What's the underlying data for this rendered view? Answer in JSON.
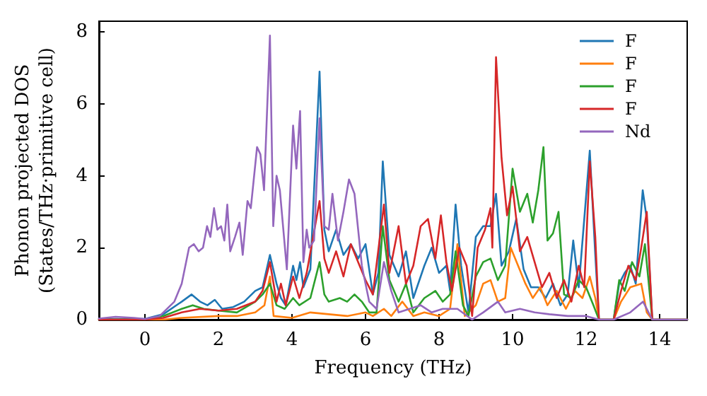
{
  "chart_data": {
    "type": "line",
    "xlabel": "Frequency (THz)",
    "ylabel": "Phonon projected DOS\n(States/THz·primitive cell)",
    "xlim": [
      -1.25,
      14.75
    ],
    "xticks": [
      0,
      2,
      4,
      6,
      8,
      10,
      12,
      14
    ],
    "ylim": [
      0,
      8.3
    ],
    "yticks": [
      0,
      2,
      4,
      6,
      8
    ],
    "grid": false,
    "legend": "top right",
    "marker": "none",
    "line_style": "solid",
    "series": [
      {
        "name": "F",
        "color": "#1f77b4",
        "x": [
          -1.25,
          0,
          0.5,
          1.0,
          1.27,
          1.5,
          1.7,
          1.9,
          2.1,
          2.4,
          2.7,
          3.0,
          3.2,
          3.4,
          3.58,
          3.7,
          3.83,
          4.03,
          4.12,
          4.22,
          4.31,
          4.5,
          4.75,
          4.88,
          5.0,
          5.2,
          5.4,
          5.6,
          5.8,
          6.0,
          6.2,
          6.35,
          6.47,
          6.65,
          6.9,
          7.1,
          7.3,
          7.6,
          7.8,
          8.0,
          8.2,
          8.3,
          8.45,
          8.6,
          8.8,
          9.0,
          9.2,
          9.4,
          9.55,
          9.7,
          9.9,
          10.1,
          10.3,
          10.5,
          10.7,
          10.9,
          11.1,
          11.3,
          11.5,
          11.65,
          11.8,
          12.1,
          12.25,
          12.35,
          12.75,
          12.9,
          13.05,
          13.2,
          13.35,
          13.54,
          13.65,
          13.8,
          14.75
        ],
        "values": [
          0.02,
          0.02,
          0.15,
          0.5,
          0.7,
          0.5,
          0.4,
          0.55,
          0.3,
          0.35,
          0.5,
          0.8,
          0.9,
          1.8,
          1.0,
          0.6,
          0.4,
          1.5,
          1.1,
          1.6,
          0.9,
          1.4,
          6.9,
          2.5,
          1.9,
          2.5,
          1.8,
          2.1,
          1.7,
          2.1,
          0.7,
          1.3,
          4.4,
          1.8,
          1.2,
          1.9,
          0.6,
          1.5,
          2.0,
          1.3,
          1.5,
          0.8,
          3.2,
          1.5,
          0.2,
          2.3,
          2.6,
          2.6,
          3.5,
          1.5,
          1.9,
          2.8,
          1.4,
          0.9,
          0.9,
          0.6,
          1.0,
          0.4,
          0.7,
          2.2,
          0.9,
          4.7,
          1.8,
          0,
          0,
          1.0,
          1.3,
          1.5,
          1.0,
          3.6,
          2.8,
          0,
          0
        ]
      },
      {
        "name": "F",
        "color": "#ff7f0e",
        "x": [
          -1.25,
          0.5,
          1.0,
          2.0,
          2.5,
          3.0,
          3.25,
          3.4,
          3.5,
          4.0,
          4.5,
          5.0,
          5.5,
          6.0,
          6.2,
          6.5,
          6.7,
          7.0,
          7.3,
          7.6,
          8.0,
          8.3,
          8.5,
          8.7,
          9.0,
          9.2,
          9.4,
          9.6,
          9.8,
          9.95,
          10.15,
          10.35,
          10.55,
          10.75,
          10.95,
          11.2,
          11.45,
          11.7,
          11.9,
          12.1,
          12.25,
          12.35,
          12.75,
          12.95,
          13.2,
          13.5,
          13.65,
          13.8,
          14.75
        ],
        "values": [
          0,
          0,
          0.05,
          0.1,
          0.1,
          0.2,
          0.4,
          1.2,
          0.1,
          0.05,
          0.2,
          0.15,
          0.1,
          0.2,
          0.1,
          0.3,
          0.1,
          0.5,
          0.1,
          0.2,
          0.1,
          0.3,
          2.1,
          0.1,
          0.4,
          1.0,
          1.1,
          0.5,
          0.6,
          2.0,
          1.5,
          1.0,
          0.6,
          0.9,
          0.4,
          0.8,
          0.3,
          0.8,
          0.6,
          1.2,
          0.6,
          0,
          0,
          0.5,
          0.9,
          1.0,
          0.2,
          0,
          0
        ]
      },
      {
        "name": "F",
        "color": "#2ca02c",
        "x": [
          -1.25,
          0,
          0.5,
          1.0,
          1.3,
          1.6,
          2.0,
          2.5,
          3.0,
          3.2,
          3.4,
          3.58,
          3.8,
          4.03,
          4.2,
          4.5,
          4.75,
          4.88,
          5.0,
          5.3,
          5.5,
          5.7,
          5.9,
          6.1,
          6.3,
          6.47,
          6.65,
          6.9,
          7.1,
          7.3,
          7.6,
          7.9,
          8.1,
          8.3,
          8.45,
          8.65,
          8.8,
          9.0,
          9.2,
          9.4,
          9.6,
          9.8,
          10.0,
          10.2,
          10.4,
          10.55,
          10.7,
          10.84,
          10.95,
          11.1,
          11.25,
          11.4,
          11.6,
          11.8,
          12.0,
          12.2,
          12.35,
          12.75,
          12.9,
          13.05,
          13.25,
          13.45,
          13.6,
          13.8,
          14.75
        ],
        "values": [
          0,
          0,
          0.1,
          0.3,
          0.4,
          0.3,
          0.25,
          0.2,
          0.5,
          0.7,
          1.0,
          0.4,
          0.3,
          0.6,
          0.4,
          0.6,
          1.6,
          0.7,
          0.5,
          0.6,
          0.5,
          0.7,
          0.5,
          0.2,
          0.2,
          2.6,
          1.1,
          0.5,
          1.0,
          0.2,
          0.6,
          0.8,
          0.5,
          0.7,
          1.9,
          0.4,
          0.1,
          1.2,
          1.6,
          1.7,
          1.1,
          1.5,
          4.2,
          3.0,
          3.5,
          2.7,
          3.6,
          4.8,
          2.2,
          2.4,
          3.0,
          0.7,
          0.6,
          1.1,
          0.9,
          0.4,
          0,
          0,
          1.1,
          0.8,
          1.6,
          1.2,
          2.1,
          0,
          0
        ]
      },
      {
        "name": "F",
        "color": "#d62728",
        "x": [
          -1.25,
          0,
          0.5,
          1.0,
          1.5,
          2.0,
          2.5,
          3.0,
          3.2,
          3.4,
          3.58,
          3.7,
          3.83,
          4.03,
          4.2,
          4.4,
          4.75,
          4.88,
          5.0,
          5.2,
          5.4,
          5.6,
          5.8,
          6.0,
          6.2,
          6.5,
          6.65,
          6.9,
          7.1,
          7.3,
          7.5,
          7.7,
          7.9,
          8.05,
          8.2,
          8.35,
          8.55,
          8.75,
          8.9,
          9.05,
          9.25,
          9.4,
          9.45,
          9.55,
          9.7,
          9.85,
          10.0,
          10.2,
          10.4,
          10.6,
          10.8,
          11.0,
          11.2,
          11.4,
          11.6,
          11.8,
          11.95,
          12.1,
          12.25,
          12.35,
          12.75,
          12.95,
          13.15,
          13.35,
          13.5,
          13.65,
          13.8,
          14.75
        ],
        "values": [
          0,
          0,
          0.05,
          0.2,
          0.3,
          0.25,
          0.3,
          0.5,
          0.8,
          1.6,
          0.5,
          1.0,
          0.4,
          1.2,
          0.6,
          1.3,
          3.3,
          1.7,
          1.3,
          1.9,
          1.2,
          2.1,
          1.6,
          1.1,
          0.7,
          3.2,
          1.3,
          2.6,
          1.0,
          1.5,
          2.6,
          2.8,
          1.7,
          2.9,
          1.6,
          0.8,
          2.0,
          1.5,
          0.1,
          2.0,
          2.5,
          3.1,
          2.0,
          7.3,
          4.5,
          2.9,
          3.7,
          1.9,
          2.3,
          1.6,
          0.9,
          1.3,
          0.6,
          1.1,
          0.5,
          1.5,
          0.9,
          4.4,
          2.3,
          0,
          0,
          0.8,
          1.5,
          1.1,
          2.0,
          3.0,
          0,
          0
        ]
      },
      {
        "name": "Nd",
        "color": "#9467bd",
        "x": [
          -1.25,
          -0.8,
          -0.3,
          0,
          0.4,
          0.8,
          1.0,
          1.2,
          1.33,
          1.46,
          1.58,
          1.69,
          1.78,
          1.88,
          1.97,
          2.07,
          2.16,
          2.24,
          2.32,
          2.45,
          2.57,
          2.66,
          2.79,
          2.88,
          3.05,
          3.14,
          3.24,
          3.4,
          3.49,
          3.58,
          3.67,
          3.86,
          4.03,
          4.12,
          4.22,
          4.31,
          4.4,
          4.47,
          4.6,
          4.75,
          4.88,
          5.0,
          5.1,
          5.25,
          5.4,
          5.55,
          5.7,
          5.9,
          6.1,
          6.3,
          6.5,
          6.7,
          6.9,
          7.2,
          7.5,
          7.8,
          8.1,
          8.5,
          8.9,
          9.2,
          9.6,
          9.8,
          10.2,
          10.6,
          11.0,
          11.5,
          12.0,
          12.35,
          12.75,
          13.2,
          13.55,
          13.8,
          14.75
        ],
        "values": [
          0.03,
          0.08,
          0.05,
          0.02,
          0.1,
          0.5,
          1.0,
          2.0,
          2.1,
          1.9,
          2.0,
          2.6,
          2.3,
          3.1,
          2.5,
          2.6,
          2.2,
          3.2,
          1.9,
          2.3,
          2.7,
          1.8,
          3.3,
          3.1,
          4.8,
          4.6,
          3.6,
          7.9,
          2.6,
          4.0,
          3.6,
          1.4,
          5.4,
          4.2,
          5.8,
          1.6,
          2.5,
          2.0,
          2.2,
          5.6,
          2.6,
          2.5,
          3.5,
          2.2,
          3.0,
          3.9,
          3.5,
          1.5,
          0.5,
          0.3,
          1.6,
          0.8,
          0.2,
          0.3,
          0.4,
          0.2,
          0.3,
          0.3,
          0,
          0.2,
          0.5,
          0.2,
          0.3,
          0.2,
          0.15,
          0.1,
          0.1,
          0,
          0,
          0.2,
          0.5,
          0,
          0
        ]
      }
    ]
  }
}
